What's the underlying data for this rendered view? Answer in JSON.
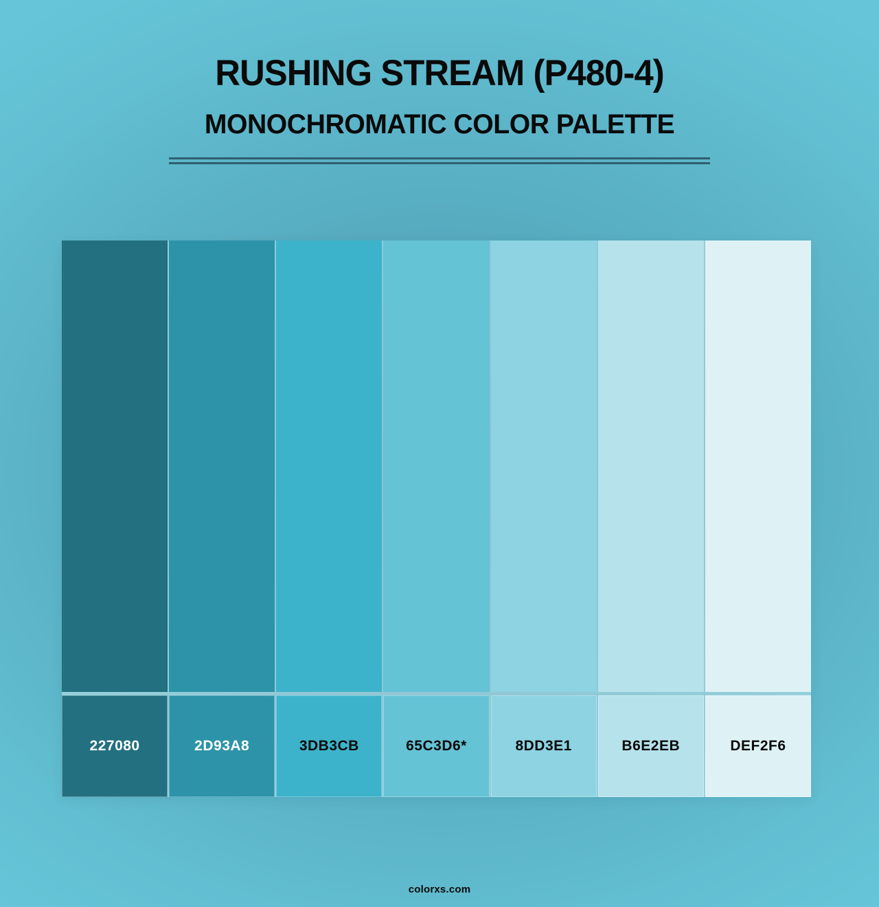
{
  "header": {
    "title": "RUSHING STREAM (P480-4)",
    "subtitle": "MONOCHROMATIC COLOR PALETTE"
  },
  "palette": {
    "swatches": [
      {
        "label": "227080",
        "color": "#227080",
        "text_color": "#FFFFFF"
      },
      {
        "label": "2D93A8",
        "color": "#2D93A8",
        "text_color": "#FFFFFF"
      },
      {
        "label": "3DB3CB",
        "color": "#3DB3CB",
        "text_color": "#0A0A0A"
      },
      {
        "label": "65C3D6*",
        "color": "#65C3D6",
        "text_color": "#0A0A0A"
      },
      {
        "label": "8DD3E1",
        "color": "#8DD3E1",
        "text_color": "#0A0A0A"
      },
      {
        "label": "B6E2EB",
        "color": "#B6E2EB",
        "text_color": "#0A0A0A"
      },
      {
        "label": "DEF2F6",
        "color": "#DEF2F6",
        "text_color": "#0A0A0A"
      }
    ]
  },
  "footer": {
    "site_label": "colorxs.com"
  },
  "theme": {
    "background_center": "#4FA0B5",
    "background_edge": "#66C5D8",
    "divider_color": "#2E5F6D",
    "heading_color": "#0A0A0A",
    "separator_overlay": "rgba(255,255,255,0.35)"
  }
}
